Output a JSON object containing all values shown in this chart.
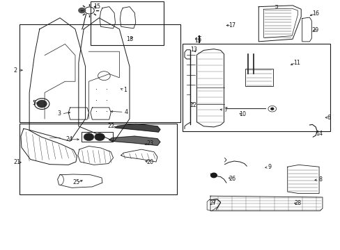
{
  "bg_color": "#ffffff",
  "line_color": "#1a1a1a",
  "boxes": {
    "seat_assembly": [
      0.055,
      0.095,
      0.475,
      0.395
    ],
    "headrest": [
      0.265,
      0.005,
      0.215,
      0.175
    ],
    "backframe": [
      0.535,
      0.175,
      0.435,
      0.35
    ],
    "cushion": [
      0.055,
      0.495,
      0.465,
      0.285
    ]
  },
  "labels": {
    "1": [
      0.365,
      0.355,
      0.335,
      0.348,
      "left"
    ],
    "2": [
      0.04,
      0.278,
      0.08,
      0.278,
      "right"
    ],
    "3": [
      0.175,
      0.452,
      0.21,
      0.445,
      "left"
    ],
    "4": [
      0.37,
      0.445,
      0.32,
      0.44,
      "left"
    ],
    "5": [
      0.098,
      0.41,
      0.122,
      0.41,
      "left"
    ],
    "6": [
      0.973,
      0.468,
      0.96,
      0.468,
      "right"
    ],
    "7": [
      0.665,
      0.438,
      0.638,
      0.435,
      "left"
    ],
    "8": [
      0.95,
      0.718,
      0.92,
      0.72,
      "left"
    ],
    "9": [
      0.8,
      0.668,
      0.775,
      0.672,
      "left"
    ],
    "10": [
      0.72,
      0.455,
      0.698,
      0.445,
      "left"
    ],
    "11": [
      0.88,
      0.248,
      0.848,
      0.258,
      "left"
    ],
    "12": [
      0.58,
      0.418,
      0.57,
      0.398,
      "left"
    ],
    "13": [
      0.56,
      0.195,
      0.582,
      0.215,
      "right"
    ],
    "14": [
      0.95,
      0.532,
      0.928,
      0.522,
      "left"
    ],
    "15": [
      0.298,
      0.025,
      0.278,
      0.038,
      "left"
    ],
    "16": [
      0.94,
      0.05,
      0.905,
      0.062,
      "left"
    ],
    "17": [
      0.695,
      0.098,
      0.66,
      0.098,
      "left"
    ],
    "18": [
      0.372,
      0.152,
      0.392,
      0.14,
      "left"
    ],
    "19": [
      0.595,
      0.158,
      0.572,
      0.15,
      "left"
    ],
    "20": [
      0.452,
      0.648,
      0.422,
      0.64,
      "left"
    ],
    "21": [
      0.04,
      0.648,
      0.068,
      0.648,
      "right"
    ],
    "22": [
      0.318,
      0.502,
      0.348,
      0.512,
      "left"
    ],
    "23": [
      0.452,
      0.572,
      0.418,
      0.578,
      "left"
    ],
    "24": [
      0.195,
      0.555,
      0.24,
      0.555,
      "left"
    ],
    "25": [
      0.215,
      0.728,
      0.25,
      0.718,
      "left"
    ],
    "26": [
      0.695,
      0.712,
      0.668,
      0.708,
      "left"
    ],
    "27": [
      0.618,
      0.812,
      0.638,
      0.798,
      "left"
    ],
    "28": [
      0.888,
      0.812,
      0.858,
      0.808,
      "left"
    ],
    "29": [
      0.94,
      0.118,
      0.92,
      0.118,
      "left"
    ]
  }
}
